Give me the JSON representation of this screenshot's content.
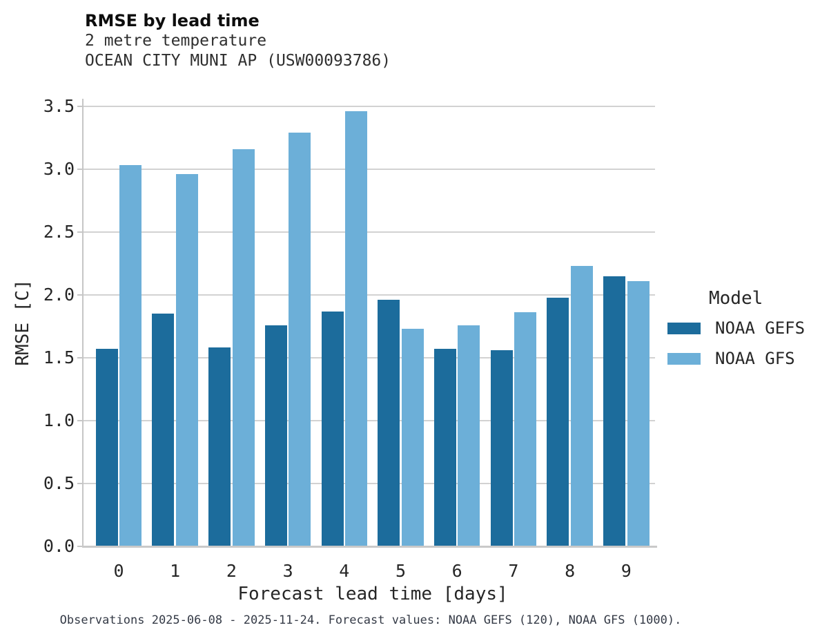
{
  "header": {
    "title": "RMSE by lead time",
    "subtitle1": "2 metre temperature",
    "subtitle2": "OCEAN CITY MUNI AP (USW00093786)"
  },
  "chart_data": {
    "type": "bar",
    "title": "RMSE by lead time",
    "subtitle": [
      "2 metre temperature",
      "OCEAN CITY MUNI AP (USW00093786)"
    ],
    "categories": [
      "0",
      "1",
      "2",
      "3",
      "4",
      "5",
      "6",
      "7",
      "8",
      "9"
    ],
    "series": [
      {
        "name": "NOAA GEFS",
        "color": "#1c6c9c",
        "values": [
          1.57,
          1.85,
          1.58,
          1.76,
          1.87,
          1.96,
          1.57,
          1.56,
          1.98,
          2.15
        ]
      },
      {
        "name": "NOAA GFS",
        "color": "#6cafd8",
        "values": [
          3.03,
          2.96,
          3.16,
          3.29,
          3.46,
          1.73,
          1.76,
          1.86,
          2.23,
          2.11
        ]
      }
    ],
    "xlabel": "Forecast lead time [days]",
    "ylabel": "RMSE [C]",
    "ylim": [
      0,
      3.56
    ],
    "ytick_labels": [
      "0.0",
      "0.5",
      "1.0",
      "1.5",
      "2.0",
      "2.5",
      "3.0",
      "3.5"
    ],
    "grid": true,
    "legend_position": "right"
  },
  "legend": {
    "title": "Model"
  },
  "caption": "Observations 2025-06-08 - 2025-11-24. Forecast values: NOAA GEFS (120), NOAA GFS (1000).",
  "colors": {
    "gefs": "#1c6c9c",
    "gfs": "#6cafd8",
    "gridline": "#d2d2d2",
    "spine": "#c6c6c6",
    "text": "#262626",
    "caption_text": "#343a46"
  }
}
